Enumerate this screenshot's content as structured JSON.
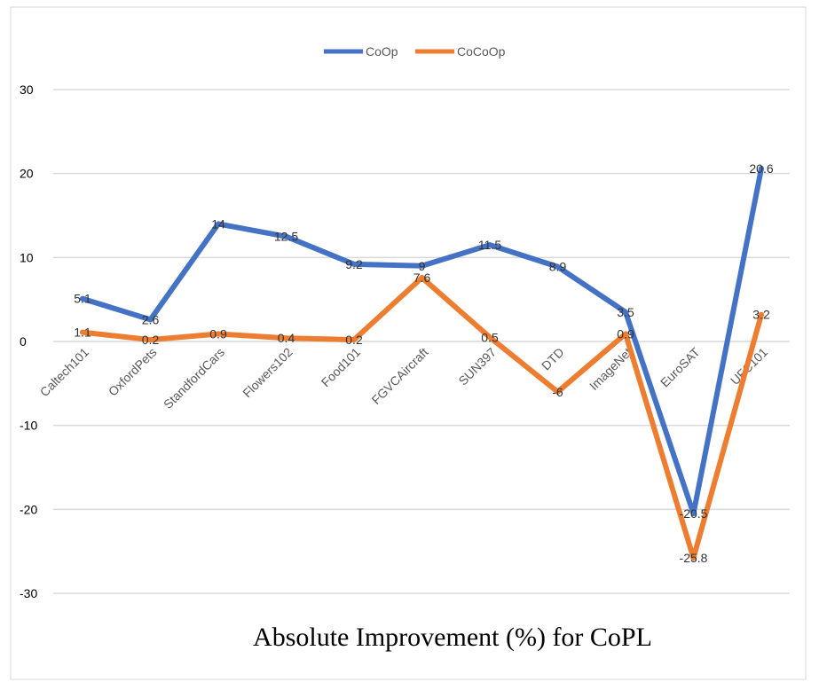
{
  "chart_data": {
    "type": "line",
    "title": "Absolute Improvement (%) for CoPL",
    "xlabel": "",
    "ylabel": "",
    "categories": [
      "Caltech101",
      "OxfordPets",
      "StandfordCars",
      "Flowers102",
      "Food101",
      "FGVCAircraft",
      "SUN397",
      "DTD",
      "ImageNet",
      "EuroSAT",
      "UFC101"
    ],
    "series": [
      {
        "name": "CoOp",
        "color": "#4472C4",
        "values": [
          5.1,
          2.6,
          14,
          12.5,
          9.2,
          9,
          11.5,
          8.9,
          3.5,
          -20.5,
          20.6
        ]
      },
      {
        "name": "CoCoOp",
        "color": "#ED7D31",
        "values": [
          1.1,
          0.2,
          0.9,
          0.4,
          0.2,
          7.6,
          0.5,
          -6,
          0.9,
          -25.8,
          3.2
        ]
      }
    ],
    "ylim": [
      -30,
      30
    ],
    "yticks": [
      30,
      20,
      10,
      0,
      -10,
      -20,
      -30
    ],
    "grid": true,
    "legend": "top-center",
    "data_labels": true
  }
}
